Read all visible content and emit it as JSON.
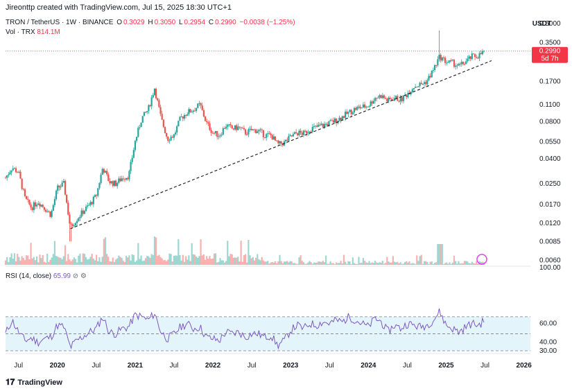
{
  "header": {
    "credit": "Jireonttp created with TradingView.com, Jul 15, 2025 18:30 UTC+1"
  },
  "legend": {
    "symbol": "TRON / TetherUS · 1W · BINANCE",
    "o_label": "O",
    "o_value": "0.3029",
    "h_label": "H",
    "h_value": "0.3050",
    "l_label": "L",
    "l_value": "0.2954",
    "c_label": "C",
    "c_value": "0.2990",
    "change": "−0.0038 (−1.25%)",
    "vol_label": "Vol · TRX",
    "vol_value": "814.1M",
    "rsi_label": "RSI (14, close)",
    "rsi_value": "65.99"
  },
  "axis": {
    "currency": "USDT",
    "price_ticks": [
      "0.5000",
      "0.3500",
      "0.1700",
      "0.1100",
      "0.0800",
      "0.0550",
      "0.0400",
      "0.0250",
      "0.0170",
      "0.0120",
      "0.0085",
      "0.0060"
    ],
    "price_tag": "0.2990",
    "countdown": "5d 7h",
    "rsi_ticks": [
      "100.00",
      "60.00",
      "40.00",
      "30.00"
    ],
    "x_labels": [
      {
        "text": "Jul",
        "bold": false
      },
      {
        "text": "2020",
        "bold": true
      },
      {
        "text": "Jul",
        "bold": false
      },
      {
        "text": "2021",
        "bold": true
      },
      {
        "text": "Jul",
        "bold": false
      },
      {
        "text": "2022",
        "bold": true
      },
      {
        "text": "Jul",
        "bold": false
      },
      {
        "text": "2023",
        "bold": true
      },
      {
        "text": "Jul",
        "bold": false
      },
      {
        "text": "2024",
        "bold": true
      },
      {
        "text": "Jul",
        "bold": false
      },
      {
        "text": "2025",
        "bold": true
      },
      {
        "text": "Jul",
        "bold": false
      },
      {
        "text": "2026",
        "bold": true
      }
    ]
  },
  "footer": {
    "brand": "TradingView"
  },
  "colors": {
    "up": "#26a69a",
    "down": "#ef5350",
    "rsi": "#7e57c2",
    "rsi_band": "#e3f5fb",
    "trend": "#131722",
    "price_line": "#f23645"
  },
  "chart_data": {
    "type": "candlestick",
    "title": "TRON / TetherUS · 1W · BINANCE",
    "y_scale": "log",
    "ylim": [
      0.0055,
      0.6
    ],
    "x_range": [
      "2019-05",
      "2026-02"
    ],
    "price_path": [
      [
        "2019-05",
        0.028
      ],
      [
        "2019-06",
        0.034
      ],
      [
        "2019-07",
        0.031
      ],
      [
        "2019-08",
        0.019
      ],
      [
        "2019-09",
        0.016
      ],
      [
        "2019-10",
        0.018
      ],
      [
        "2019-11",
        0.016
      ],
      [
        "2019-12",
        0.014
      ],
      [
        "2020-01",
        0.023
      ],
      [
        "2020-02",
        0.025
      ],
      [
        "2020-03",
        0.011
      ],
      [
        "2020-04",
        0.013
      ],
      [
        "2020-05",
        0.015
      ],
      [
        "2020-06",
        0.017
      ],
      [
        "2020-07",
        0.02
      ],
      [
        "2020-08",
        0.034
      ],
      [
        "2020-09",
        0.026
      ],
      [
        "2020-10",
        0.025
      ],
      [
        "2020-11",
        0.028
      ],
      [
        "2020-12",
        0.029
      ],
      [
        "2021-01",
        0.055
      ],
      [
        "2021-02",
        0.085
      ],
      [
        "2021-03",
        0.1
      ],
      [
        "2021-04",
        0.15
      ],
      [
        "2021-05",
        0.085
      ],
      [
        "2021-06",
        0.058
      ],
      [
        "2021-07",
        0.062
      ],
      [
        "2021-08",
        0.085
      ],
      [
        "2021-09",
        0.095
      ],
      [
        "2021-10",
        0.1
      ],
      [
        "2021-11",
        0.11
      ],
      [
        "2021-12",
        0.078
      ],
      [
        "2022-01",
        0.065
      ],
      [
        "2022-02",
        0.062
      ],
      [
        "2022-03",
        0.075
      ],
      [
        "2022-04",
        0.07
      ],
      [
        "2022-05",
        0.072
      ],
      [
        "2022-06",
        0.065
      ],
      [
        "2022-07",
        0.068
      ],
      [
        "2022-08",
        0.068
      ],
      [
        "2022-09",
        0.062
      ],
      [
        "2022-10",
        0.062
      ],
      [
        "2022-11",
        0.052
      ],
      [
        "2022-12",
        0.054
      ],
      [
        "2023-01",
        0.06
      ],
      [
        "2023-02",
        0.065
      ],
      [
        "2023-03",
        0.064
      ],
      [
        "2023-04",
        0.07
      ],
      [
        "2023-05",
        0.072
      ],
      [
        "2023-06",
        0.075
      ],
      [
        "2023-07",
        0.078
      ],
      [
        "2023-08",
        0.082
      ],
      [
        "2023-09",
        0.088
      ],
      [
        "2023-10",
        0.095
      ],
      [
        "2023-11",
        0.102
      ],
      [
        "2023-12",
        0.105
      ],
      [
        "2024-01",
        0.108
      ],
      [
        "2024-02",
        0.125
      ],
      [
        "2024-03",
        0.13
      ],
      [
        "2024-04",
        0.118
      ],
      [
        "2024-05",
        0.125
      ],
      [
        "2024-06",
        0.12
      ],
      [
        "2024-07",
        0.135
      ],
      [
        "2024-08",
        0.155
      ],
      [
        "2024-09",
        0.16
      ],
      [
        "2024-10",
        0.17
      ],
      [
        "2024-11",
        0.21
      ],
      [
        "2024-12",
        0.27
      ],
      [
        "2025-01",
        0.245
      ],
      [
        "2025-02",
        0.24
      ],
      [
        "2025-03",
        0.225
      ],
      [
        "2025-04",
        0.245
      ],
      [
        "2025-05",
        0.27
      ],
      [
        "2025-06",
        0.275
      ],
      [
        "2025-07",
        0.299
      ]
    ],
    "spike_high": [
      "2024-12",
      0.44
    ],
    "spike_low": [
      "2020-03",
      0.0085
    ],
    "trendline": {
      "from": [
        "2020-03",
        0.0108
      ],
      "to": [
        "2025-08",
        0.25
      ],
      "style": "dashed"
    },
    "last_close": 0.299,
    "volume": {
      "label": "Vol · TRX",
      "last": "814.1M"
    },
    "rsi": {
      "label": "RSI (14, close)",
      "ylim": [
        30,
        100
      ],
      "bands": [
        70,
        50,
        30
      ],
      "last": 65.99,
      "values": [
        [
          "2019-05",
          50
        ],
        [
          "2019-06",
          66
        ],
        [
          "2019-07",
          52
        ],
        [
          "2019-08",
          42
        ],
        [
          "2019-09",
          45
        ],
        [
          "2019-10",
          40
        ],
        [
          "2019-11",
          44
        ],
        [
          "2019-12",
          46
        ],
        [
          "2020-01",
          60
        ],
        [
          "2020-02",
          58
        ],
        [
          "2020-03",
          34
        ],
        [
          "2020-04",
          42
        ],
        [
          "2020-05",
          47
        ],
        [
          "2020-06",
          52
        ],
        [
          "2020-07",
          56
        ],
        [
          "2020-08",
          70
        ],
        [
          "2020-09",
          52
        ],
        [
          "2020-10",
          50
        ],
        [
          "2020-11",
          56
        ],
        [
          "2020-12",
          58
        ],
        [
          "2021-01",
          72
        ],
        [
          "2021-02",
          70
        ],
        [
          "2021-03",
          66
        ],
        [
          "2021-04",
          74
        ],
        [
          "2021-05",
          52
        ],
        [
          "2021-06",
          44
        ],
        [
          "2021-07",
          50
        ],
        [
          "2021-08",
          58
        ],
        [
          "2021-09",
          62
        ],
        [
          "2021-10",
          56
        ],
        [
          "2021-11",
          58
        ],
        [
          "2021-12",
          46
        ],
        [
          "2022-01",
          44
        ],
        [
          "2022-02",
          42
        ],
        [
          "2022-03",
          52
        ],
        [
          "2022-04",
          50
        ],
        [
          "2022-05",
          52
        ],
        [
          "2022-06",
          46
        ],
        [
          "2022-07",
          50
        ],
        [
          "2022-08",
          50
        ],
        [
          "2022-09",
          46
        ],
        [
          "2022-10",
          48
        ],
        [
          "2022-11",
          36
        ],
        [
          "2022-12",
          42
        ],
        [
          "2023-01",
          54
        ],
        [
          "2023-02",
          60
        ],
        [
          "2023-03",
          56
        ],
        [
          "2023-04",
          62
        ],
        [
          "2023-05",
          60
        ],
        [
          "2023-06",
          64
        ],
        [
          "2023-07",
          62
        ],
        [
          "2023-08",
          66
        ],
        [
          "2023-09",
          64
        ],
        [
          "2023-10",
          70
        ],
        [
          "2023-11",
          66
        ],
        [
          "2023-12",
          62
        ],
        [
          "2024-01",
          58
        ],
        [
          "2024-02",
          68
        ],
        [
          "2024-03",
          64
        ],
        [
          "2024-04",
          52
        ],
        [
          "2024-05",
          60
        ],
        [
          "2024-06",
          56
        ],
        [
          "2024-07",
          62
        ],
        [
          "2024-08",
          60
        ],
        [
          "2024-09",
          58
        ],
        [
          "2024-10",
          60
        ],
        [
          "2024-11",
          66
        ],
        [
          "2024-12",
          76
        ],
        [
          "2025-01",
          60
        ],
        [
          "2025-02",
          56
        ],
        [
          "2025-03",
          52
        ],
        [
          "2025-04",
          58
        ],
        [
          "2025-05",
          62
        ],
        [
          "2025-06",
          60
        ],
        [
          "2025-07",
          66
        ]
      ]
    }
  }
}
